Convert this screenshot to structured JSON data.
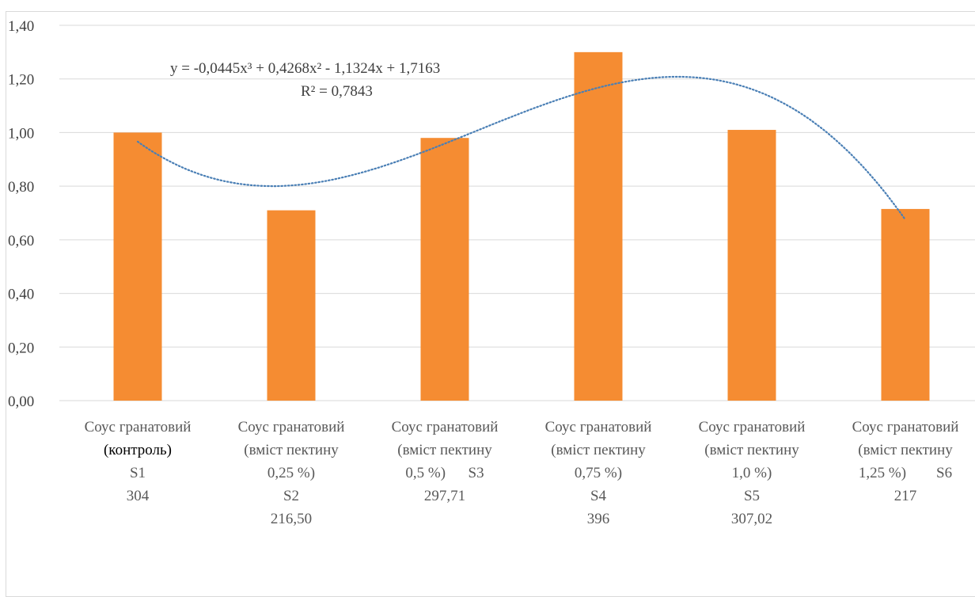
{
  "chart_data": {
    "type": "bar",
    "title": "",
    "xlabel": "",
    "ylabel": "",
    "ylim": [
      0,
      1.4
    ],
    "yticks": [
      "0,00",
      "0,20",
      "0,40",
      "0,60",
      "0,80",
      "1,00",
      "1,20",
      "1,40"
    ],
    "grid": true,
    "legend": "none",
    "bar_color": "#F58C32",
    "grid_color": "#d9d9d9",
    "trendline_color": "#4a7fb5",
    "categories": [
      [
        "Соус гранатовий",
        "(контроль)",
        "S1",
        "304"
      ],
      [
        "Соус гранатовий",
        "(вміст пектину",
        "0,25 %)",
        "S2",
        "216,50"
      ],
      [
        "Соус гранатовий",
        "(вміст пектину",
        "0,5 %)      S3",
        "297,71"
      ],
      [
        "Соус гранатовий",
        "(вміст пектину",
        "0,75 %)",
        "S4",
        "396"
      ],
      [
        "Соус гранатовий",
        "(вміст пектину",
        "1,0 %)",
        "S5",
        "307,02"
      ],
      [
        "Соус гранатовий",
        "(вміст пектину",
        "1,25 %)        S6",
        "217"
      ]
    ],
    "values": [
      1.0,
      0.71,
      0.98,
      1.3,
      1.01,
      0.715
    ],
    "trendline": {
      "type": "polynomial",
      "coefficients": [
        1.7163,
        -1.1324,
        0.4268,
        -0.0445
      ],
      "equation": "y = -0,0445x³  + 0,4268x²  - 1,1324x + 1,7163",
      "r_squared": "R² = 0,7843"
    }
  }
}
